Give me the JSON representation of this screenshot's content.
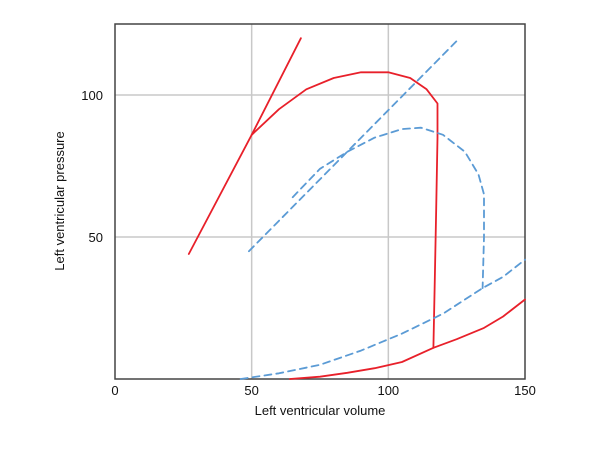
{
  "chart_data": {
    "type": "line",
    "title": "",
    "xlabel": "Left ventricular volume",
    "ylabel": "Left ventricular pressure",
    "xlim": [
      0,
      150
    ],
    "ylim": [
      0,
      125
    ],
    "x_ticks": [
      {
        "value": 0,
        "label": "0"
      },
      {
        "value": 50,
        "label": "50"
      },
      {
        "value": 100,
        "label": "100"
      },
      {
        "value": 150,
        "label": "150"
      }
    ],
    "y_ticks": [
      {
        "value": 50,
        "label": "50"
      },
      {
        "value": 100,
        "label": "100"
      }
    ],
    "grid": true,
    "colors": {
      "solid": "#e8202a",
      "dashed": "#5b9bd5",
      "grid": "#c8c8c8",
      "frame": "#444444"
    },
    "series": [
      {
        "style": "solid",
        "color": "#e8202a",
        "points": [
          [
            27,
            44
          ],
          [
            50,
            86
          ],
          [
            68,
            120
          ]
        ]
      },
      {
        "style": "solid",
        "color": "#e8202a",
        "points": [
          [
            50,
            86
          ],
          [
            60,
            95
          ],
          [
            70,
            102
          ],
          [
            80,
            106
          ],
          [
            90,
            108
          ],
          [
            100,
            108
          ],
          [
            108,
            106
          ],
          [
            114,
            102
          ],
          [
            118,
            97
          ],
          [
            118,
            85
          ],
          [
            117.5,
            60
          ],
          [
            117,
            35
          ],
          [
            116.5,
            11
          ],
          [
            125,
            14
          ],
          [
            135,
            18
          ],
          [
            142,
            22
          ],
          [
            150,
            28
          ]
        ]
      },
      {
        "style": "solid",
        "color": "#e8202a",
        "points": [
          [
            64,
            0
          ],
          [
            75,
            0.8
          ],
          [
            85,
            2.2
          ],
          [
            95,
            3.8
          ],
          [
            105,
            6
          ],
          [
            116.5,
            11
          ]
        ]
      },
      {
        "style": "dashed",
        "color": "#5b9bd5",
        "points": [
          [
            49,
            45
          ],
          [
            125,
            119
          ]
        ]
      },
      {
        "style": "dashed",
        "color": "#5b9bd5",
        "points": [
          [
            65,
            64
          ],
          [
            75,
            74
          ],
          [
            85,
            80
          ],
          [
            95,
            85
          ],
          [
            105,
            88
          ],
          [
            112,
            88.5
          ],
          [
            120,
            86
          ],
          [
            128,
            80
          ],
          [
            133,
            72
          ],
          [
            135,
            65
          ],
          [
            135,
            50
          ],
          [
            134.5,
            32
          ]
        ]
      },
      {
        "style": "dashed",
        "color": "#5b9bd5",
        "points": [
          [
            46,
            0
          ],
          [
            60,
            2
          ],
          [
            75,
            5
          ],
          [
            90,
            10
          ],
          [
            105,
            16
          ],
          [
            120,
            23
          ],
          [
            134.5,
            32
          ],
          [
            142,
            36
          ],
          [
            150,
            42
          ]
        ]
      }
    ]
  }
}
